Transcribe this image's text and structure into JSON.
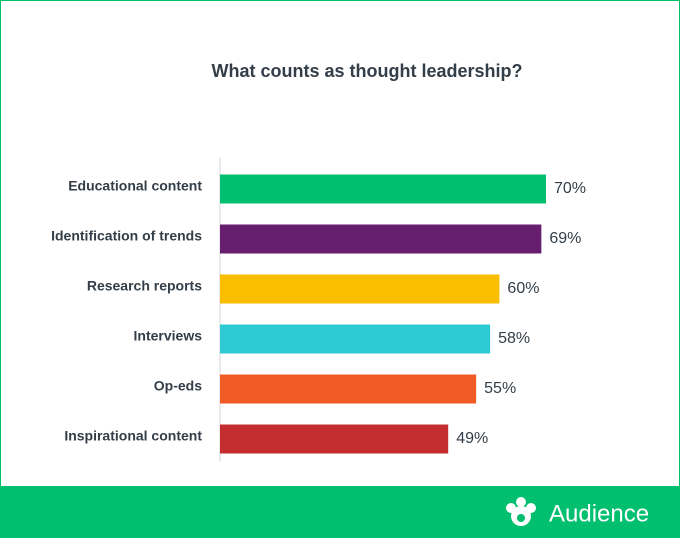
{
  "chart_data": {
    "type": "hbar",
    "title": "What counts as thought leadership?",
    "categories": [
      "Educational content",
      "Identification of trends",
      "Research reports",
      "Interviews",
      "Op-eds",
      "Inspirational content"
    ],
    "values": [
      70,
      69,
      60,
      58,
      55,
      49
    ],
    "value_labels": [
      "70%",
      "69%",
      "60%",
      "58%",
      "55%",
      "49%"
    ],
    "colors": [
      "#00bf6f",
      "#671e6e",
      "#f9be00",
      "#2ecad3",
      "#f05a24",
      "#c32d2e"
    ]
  },
  "footer": {
    "brand": "Audience"
  }
}
